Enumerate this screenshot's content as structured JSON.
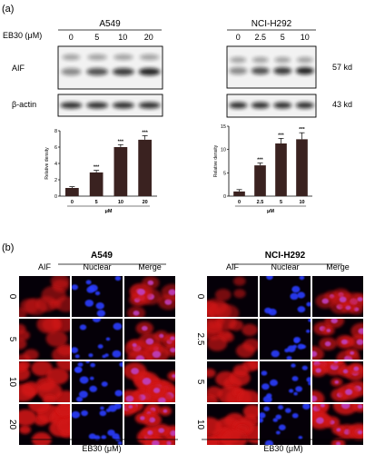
{
  "panel_a": {
    "label": "(a)",
    "dose_label": "EB30 (μM)",
    "a549": {
      "title": "A549",
      "doses": [
        "0",
        "5",
        "10",
        "20"
      ],
      "bands": [
        "AIF",
        "β-actin"
      ],
      "chart_data": {
        "type": "bar",
        "categories": [
          "0",
          "5",
          "10",
          "20"
        ],
        "values": [
          1.0,
          2.9,
          6.0,
          6.9
        ],
        "errors": [
          0.15,
          0.25,
          0.3,
          0.5
        ],
        "significance": [
          "",
          "***",
          "***",
          "***"
        ],
        "xlabel": "μM",
        "ylabel": "Relative density",
        "ylim": [
          0,
          8
        ],
        "yticks": [
          "0",
          "2",
          "4",
          "6",
          "8"
        ],
        "bar_color": "#3a2220"
      }
    },
    "h292": {
      "title": "NCI-H292",
      "doses": [
        "0",
        "2.5",
        "5",
        "10"
      ],
      "band_sizes": [
        "57 kd",
        "43 kd"
      ],
      "chart_data": {
        "type": "bar",
        "categories": [
          "0",
          "2.5",
          "5",
          "10"
        ],
        "values": [
          1.0,
          6.6,
          11.3,
          12.2
        ],
        "errors": [
          0.4,
          0.5,
          1.1,
          1.4
        ],
        "significance": [
          "",
          "***",
          "***",
          "***"
        ],
        "xlabel": "μM",
        "ylabel": "Relative density",
        "ylim": [
          0,
          15
        ],
        "yticks": [
          "0",
          "5",
          "10",
          "15"
        ],
        "bar_color": "#3a2220"
      }
    }
  },
  "panel_b": {
    "label": "(b)",
    "columns": [
      "AIF",
      "Nuclear",
      "Merge"
    ],
    "xlabel": "EB30 (μM)",
    "a549": {
      "title": "A549",
      "rows": [
        "0",
        "5",
        "10",
        "20"
      ],
      "aif_intensity": [
        0.35,
        0.55,
        0.8,
        0.9
      ]
    },
    "h292": {
      "title": "NCI-H292",
      "rows": [
        "0",
        "2.5",
        "5",
        "10"
      ],
      "aif_intensity": [
        0.35,
        0.55,
        0.75,
        0.85
      ]
    },
    "colors": {
      "aif": "#d01818",
      "nuclear": "#2a3cff",
      "merge": "#c040c0"
    }
  }
}
